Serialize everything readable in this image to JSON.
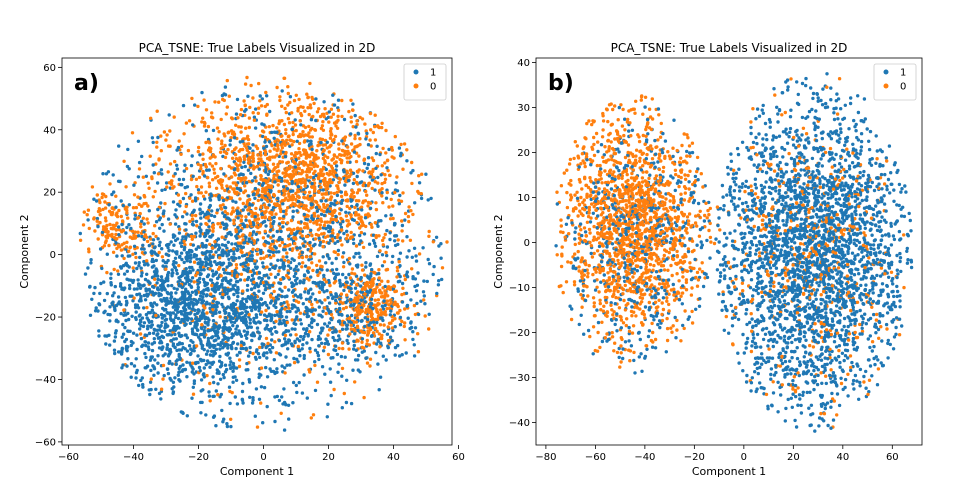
{
  "chart_data": [
    {
      "type": "scatter",
      "panel_label": "a)",
      "title": "PCA_TSNE: True Labels Visualized in 2D",
      "xlabel": "Component 1",
      "ylabel": "Component 2",
      "xlim": [
        -62,
        58
      ],
      "ylim": [
        -61,
        63
      ],
      "xticks": [
        -60,
        -40,
        -20,
        0,
        20,
        40,
        60
      ],
      "yticks": [
        -60,
        -40,
        -20,
        0,
        20,
        40,
        60
      ],
      "legend": {
        "placement": "top-right",
        "entries": [
          "1",
          "0"
        ]
      },
      "series": [
        {
          "name": "1",
          "color": "#1f77b4",
          "clusters": [
            {
              "center": [
                -20,
                -17
              ],
              "spread": [
                16,
                14
              ],
              "count": 1300
            },
            {
              "center": [
                -5,
                -5
              ],
              "spread": [
                27,
                24
              ],
              "count": 1100
            },
            {
              "center": [
                30,
                -18
              ],
              "spread": [
                12,
                10
              ],
              "count": 300
            },
            {
              "center": [
                10,
                20
              ],
              "spread": [
                22,
                18
              ],
              "count": 350
            }
          ],
          "boundary": {
            "shape": "circle",
            "center": [
              0,
              0
            ],
            "radius": 57
          }
        },
        {
          "name": "0",
          "color": "#ff7f0e",
          "clusters": [
            {
              "center": [
                10,
                25
              ],
              "spread": [
                17,
                14
              ],
              "count": 1300
            },
            {
              "center": [
                33,
                -17
              ],
              "spread": [
                6,
                6
              ],
              "count": 300
            },
            {
              "center": [
                -44,
                9
              ],
              "spread": [
                6,
                6
              ],
              "count": 170
            },
            {
              "center": [
                0,
                0
              ],
              "spread": [
                25,
                25
              ],
              "count": 500
            }
          ],
          "boundary": {
            "shape": "circle",
            "center": [
              0,
              0
            ],
            "radius": 57
          }
        }
      ]
    },
    {
      "type": "scatter",
      "panel_label": "b)",
      "title": "PCA_TSNE: True Labels Visualized in 2D",
      "xlabel": "Component 1",
      "ylabel": "Component 2",
      "xlim": [
        -84,
        72
      ],
      "ylim": [
        -45,
        41
      ],
      "xticks": [
        -80,
        -60,
        -40,
        -20,
        0,
        20,
        40,
        60
      ],
      "yticks": [
        -40,
        -30,
        -20,
        -10,
        0,
        10,
        20,
        30,
        40
      ],
      "legend": {
        "placement": "top-right",
        "entries": [
          "1",
          "0"
        ]
      },
      "series": [
        {
          "name": "1",
          "color": "#1f77b4",
          "clusters": [
            {
              "center": [
                28,
                -2
              ],
              "spread": [
                20,
                18
              ],
              "count": 2700
            },
            {
              "center": [
                -45,
                0
              ],
              "spread": [
                15,
                14
              ],
              "count": 500
            }
          ],
          "ellipses": [
            {
              "center": [
                28,
                -2
              ],
              "radii": [
                40,
                40
              ]
            },
            {
              "center": [
                -45,
                2
              ],
              "radii": [
                32,
                31
              ]
            }
          ]
        },
        {
          "name": "0",
          "color": "#ff7f0e",
          "clusters": [
            {
              "center": [
                -45,
                4
              ],
              "spread": [
                14,
                13
              ],
              "count": 1500
            },
            {
              "center": [
                28,
                -2
              ],
              "spread": [
                20,
                18
              ],
              "count": 420
            }
          ],
          "ellipses": [
            {
              "center": [
                28,
                -2
              ],
              "radii": [
                40,
                40
              ]
            },
            {
              "center": [
                -45,
                2
              ],
              "radii": [
                32,
                31
              ]
            }
          ]
        }
      ]
    }
  ]
}
